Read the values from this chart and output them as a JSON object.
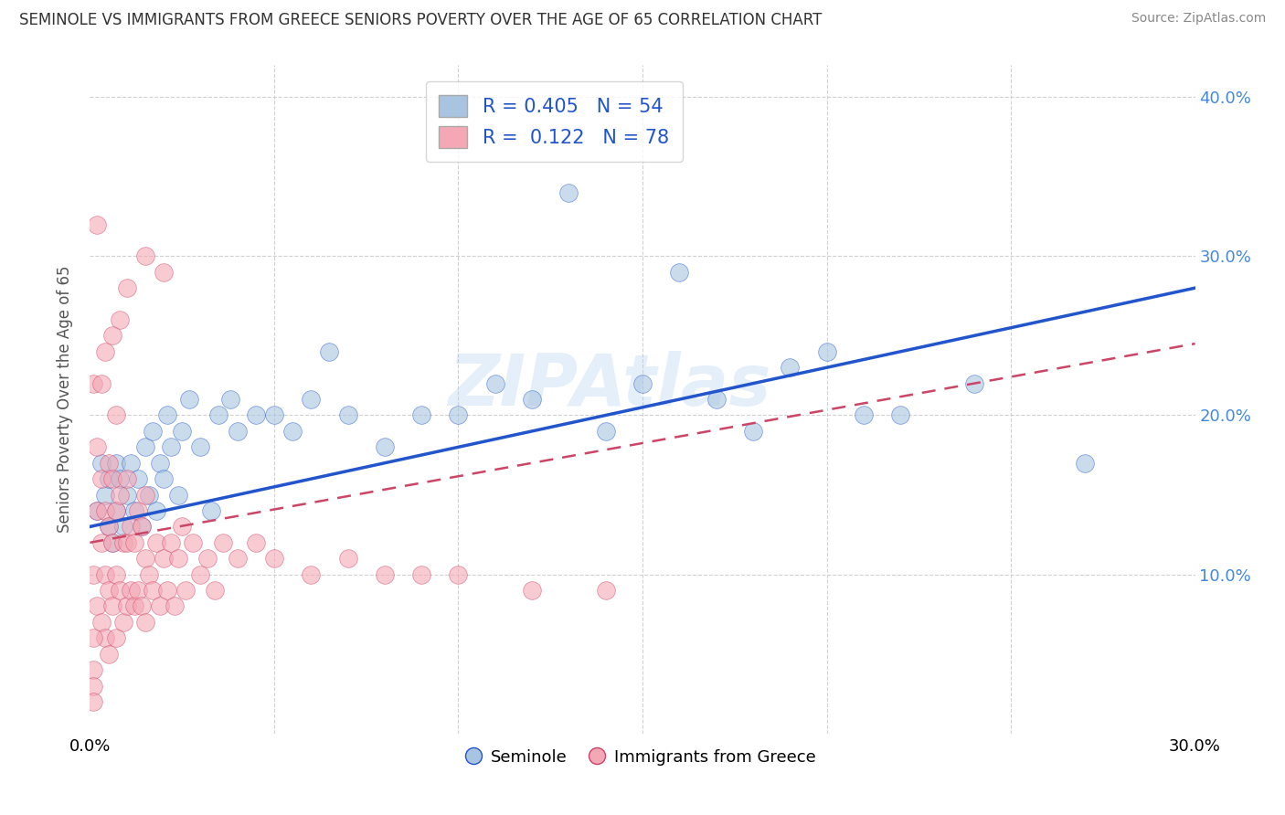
{
  "title": "SEMINOLE VS IMMIGRANTS FROM GREECE SENIORS POVERTY OVER THE AGE OF 65 CORRELATION CHART",
  "source": "Source: ZipAtlas.com",
  "ylabel": "Seniors Poverty Over the Age of 65",
  "xlim": [
    0.0,
    0.3
  ],
  "ylim": [
    0.0,
    0.42
  ],
  "xticks": [
    0.0,
    0.05,
    0.1,
    0.15,
    0.2,
    0.25,
    0.3
  ],
  "yticks": [
    0.0,
    0.1,
    0.2,
    0.3,
    0.4
  ],
  "xtick_labels": [
    "0.0%",
    "",
    "",
    "",
    "",
    "",
    "30.0%"
  ],
  "ytick_labels_right": [
    "",
    "10.0%",
    "20.0%",
    "30.0%",
    "40.0%"
  ],
  "color_seminole": "#a8c4e0",
  "color_greece": "#f4a7b5",
  "color_line_seminole": "#2255cc",
  "color_line_greece": "#cc4466",
  "watermark": "ZIPAtlas",
  "seminole_R": 0.405,
  "seminole_N": 54,
  "greece_R": 0.122,
  "greece_N": 78,
  "seminole_line": [
    0.13,
    0.28
  ],
  "greece_line": [
    0.12,
    0.245
  ],
  "seminole_x": [
    0.002,
    0.003,
    0.004,
    0.005,
    0.005,
    0.006,
    0.007,
    0.007,
    0.008,
    0.009,
    0.01,
    0.011,
    0.012,
    0.013,
    0.014,
    0.015,
    0.016,
    0.017,
    0.018,
    0.019,
    0.02,
    0.021,
    0.022,
    0.024,
    0.025,
    0.027,
    0.03,
    0.033,
    0.035,
    0.038,
    0.04,
    0.045,
    0.05,
    0.055,
    0.06,
    0.065,
    0.07,
    0.08,
    0.09,
    0.1,
    0.11,
    0.12,
    0.13,
    0.14,
    0.15,
    0.16,
    0.17,
    0.18,
    0.19,
    0.2,
    0.21,
    0.22,
    0.24,
    0.27
  ],
  "seminole_y": [
    0.14,
    0.17,
    0.15,
    0.13,
    0.16,
    0.12,
    0.14,
    0.17,
    0.16,
    0.13,
    0.15,
    0.17,
    0.14,
    0.16,
    0.13,
    0.18,
    0.15,
    0.19,
    0.14,
    0.17,
    0.16,
    0.2,
    0.18,
    0.15,
    0.19,
    0.21,
    0.18,
    0.14,
    0.2,
    0.21,
    0.19,
    0.2,
    0.2,
    0.19,
    0.21,
    0.24,
    0.2,
    0.18,
    0.2,
    0.2,
    0.22,
    0.21,
    0.34,
    0.19,
    0.22,
    0.29,
    0.21,
    0.19,
    0.23,
    0.24,
    0.2,
    0.2,
    0.22,
    0.17
  ],
  "greece_x": [
    0.001,
    0.001,
    0.002,
    0.002,
    0.002,
    0.003,
    0.003,
    0.003,
    0.004,
    0.004,
    0.004,
    0.005,
    0.005,
    0.005,
    0.005,
    0.006,
    0.006,
    0.006,
    0.007,
    0.007,
    0.007,
    0.007,
    0.008,
    0.008,
    0.009,
    0.009,
    0.01,
    0.01,
    0.01,
    0.011,
    0.011,
    0.012,
    0.012,
    0.013,
    0.013,
    0.014,
    0.014,
    0.015,
    0.015,
    0.015,
    0.016,
    0.017,
    0.018,
    0.019,
    0.02,
    0.021,
    0.022,
    0.023,
    0.024,
    0.025,
    0.026,
    0.028,
    0.03,
    0.032,
    0.034,
    0.036,
    0.04,
    0.045,
    0.05,
    0.06,
    0.07,
    0.08,
    0.09,
    0.1,
    0.12,
    0.14,
    0.02,
    0.015,
    0.01,
    0.008,
    0.006,
    0.004,
    0.003,
    0.002,
    0.001,
    0.001,
    0.001,
    0.001
  ],
  "greece_y": [
    0.1,
    0.22,
    0.14,
    0.08,
    0.18,
    0.07,
    0.12,
    0.16,
    0.06,
    0.1,
    0.14,
    0.05,
    0.09,
    0.13,
    0.17,
    0.08,
    0.12,
    0.16,
    0.06,
    0.1,
    0.14,
    0.2,
    0.09,
    0.15,
    0.07,
    0.12,
    0.08,
    0.12,
    0.16,
    0.09,
    0.13,
    0.08,
    0.12,
    0.09,
    0.14,
    0.08,
    0.13,
    0.07,
    0.11,
    0.15,
    0.1,
    0.09,
    0.12,
    0.08,
    0.11,
    0.09,
    0.12,
    0.08,
    0.11,
    0.13,
    0.09,
    0.12,
    0.1,
    0.11,
    0.09,
    0.12,
    0.11,
    0.12,
    0.11,
    0.1,
    0.11,
    0.1,
    0.1,
    0.1,
    0.09,
    0.09,
    0.29,
    0.3,
    0.28,
    0.26,
    0.25,
    0.24,
    0.22,
    0.32,
    0.06,
    0.04,
    0.03,
    0.02
  ]
}
